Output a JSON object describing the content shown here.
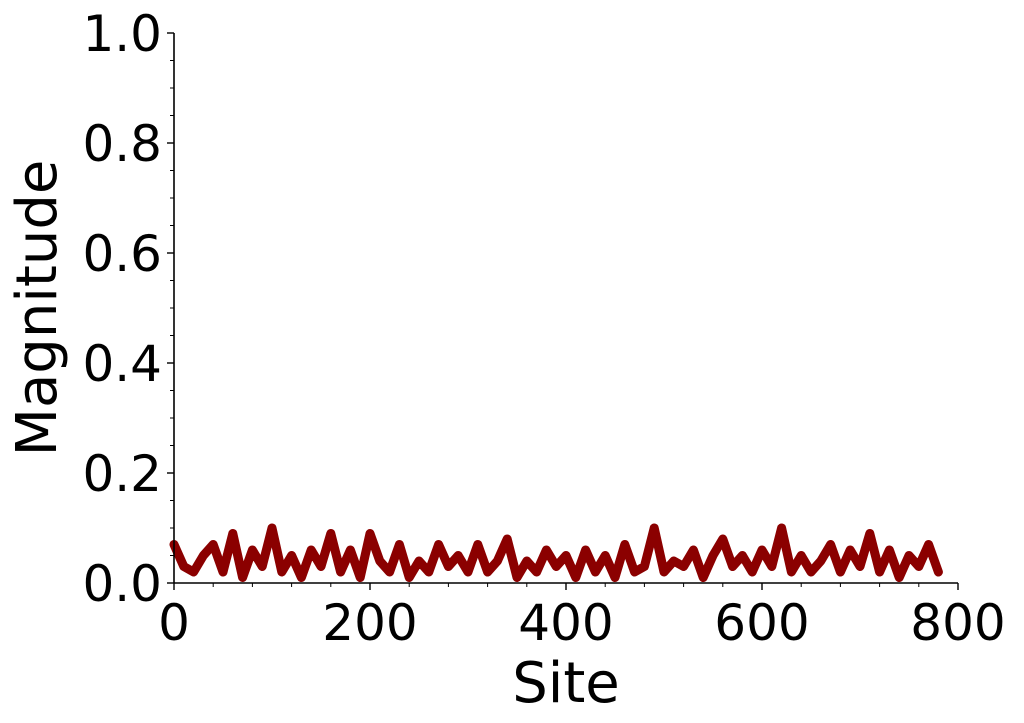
{
  "chart_data": {
    "type": "line",
    "title": "",
    "xlabel": "Site",
    "ylabel": "Magnitude",
    "xlim": [
      0,
      800
    ],
    "ylim": [
      0,
      1
    ],
    "xticks": [
      0,
      200,
      400,
      600,
      800
    ],
    "xtick_labels": [
      "0",
      "200",
      "400",
      "600",
      "800"
    ],
    "yticks": [
      0,
      0.2,
      0.4,
      0.6,
      0.8,
      1.0
    ],
    "ytick_labels": [
      "0.0",
      "0.2",
      "0.4",
      "0.6",
      "0.8",
      "1.0"
    ],
    "grid": false,
    "legend": "none",
    "series": [
      {
        "color": "#8b0000",
        "x": [
          0,
          10,
          20,
          30,
          40,
          50,
          60,
          70,
          80,
          90,
          100,
          110,
          120,
          130,
          140,
          150,
          160,
          170,
          180,
          190,
          200,
          210,
          220,
          230,
          240,
          250,
          260,
          270,
          280,
          290,
          300,
          310,
          320,
          330,
          340,
          350,
          360,
          370,
          380,
          390,
          400,
          410,
          420,
          430,
          440,
          450,
          460,
          470,
          480,
          490,
          500,
          510,
          520,
          530,
          540,
          550,
          560,
          570,
          580,
          590,
          600,
          610,
          620,
          630,
          640,
          650,
          660,
          670,
          680,
          690,
          700,
          710,
          720,
          730,
          740,
          750,
          760,
          770,
          780
        ],
        "y": [
          0.07,
          0.03,
          0.02,
          0.05,
          0.07,
          0.02,
          0.09,
          0.01,
          0.06,
          0.03,
          0.1,
          0.02,
          0.05,
          0.01,
          0.06,
          0.03,
          0.09,
          0.02,
          0.06,
          0.01,
          0.09,
          0.04,
          0.02,
          0.07,
          0.01,
          0.04,
          0.02,
          0.07,
          0.03,
          0.05,
          0.02,
          0.07,
          0.02,
          0.04,
          0.08,
          0.01,
          0.04,
          0.02,
          0.06,
          0.03,
          0.05,
          0.01,
          0.06,
          0.02,
          0.05,
          0.01,
          0.07,
          0.02,
          0.03,
          0.1,
          0.02,
          0.04,
          0.03,
          0.06,
          0.01,
          0.05,
          0.08,
          0.03,
          0.05,
          0.02,
          0.06,
          0.03,
          0.1,
          0.02,
          0.05,
          0.02,
          0.04,
          0.07,
          0.02,
          0.06,
          0.03,
          0.09,
          0.02,
          0.06,
          0.01,
          0.05,
          0.03,
          0.07,
          0.02
        ]
      }
    ]
  }
}
